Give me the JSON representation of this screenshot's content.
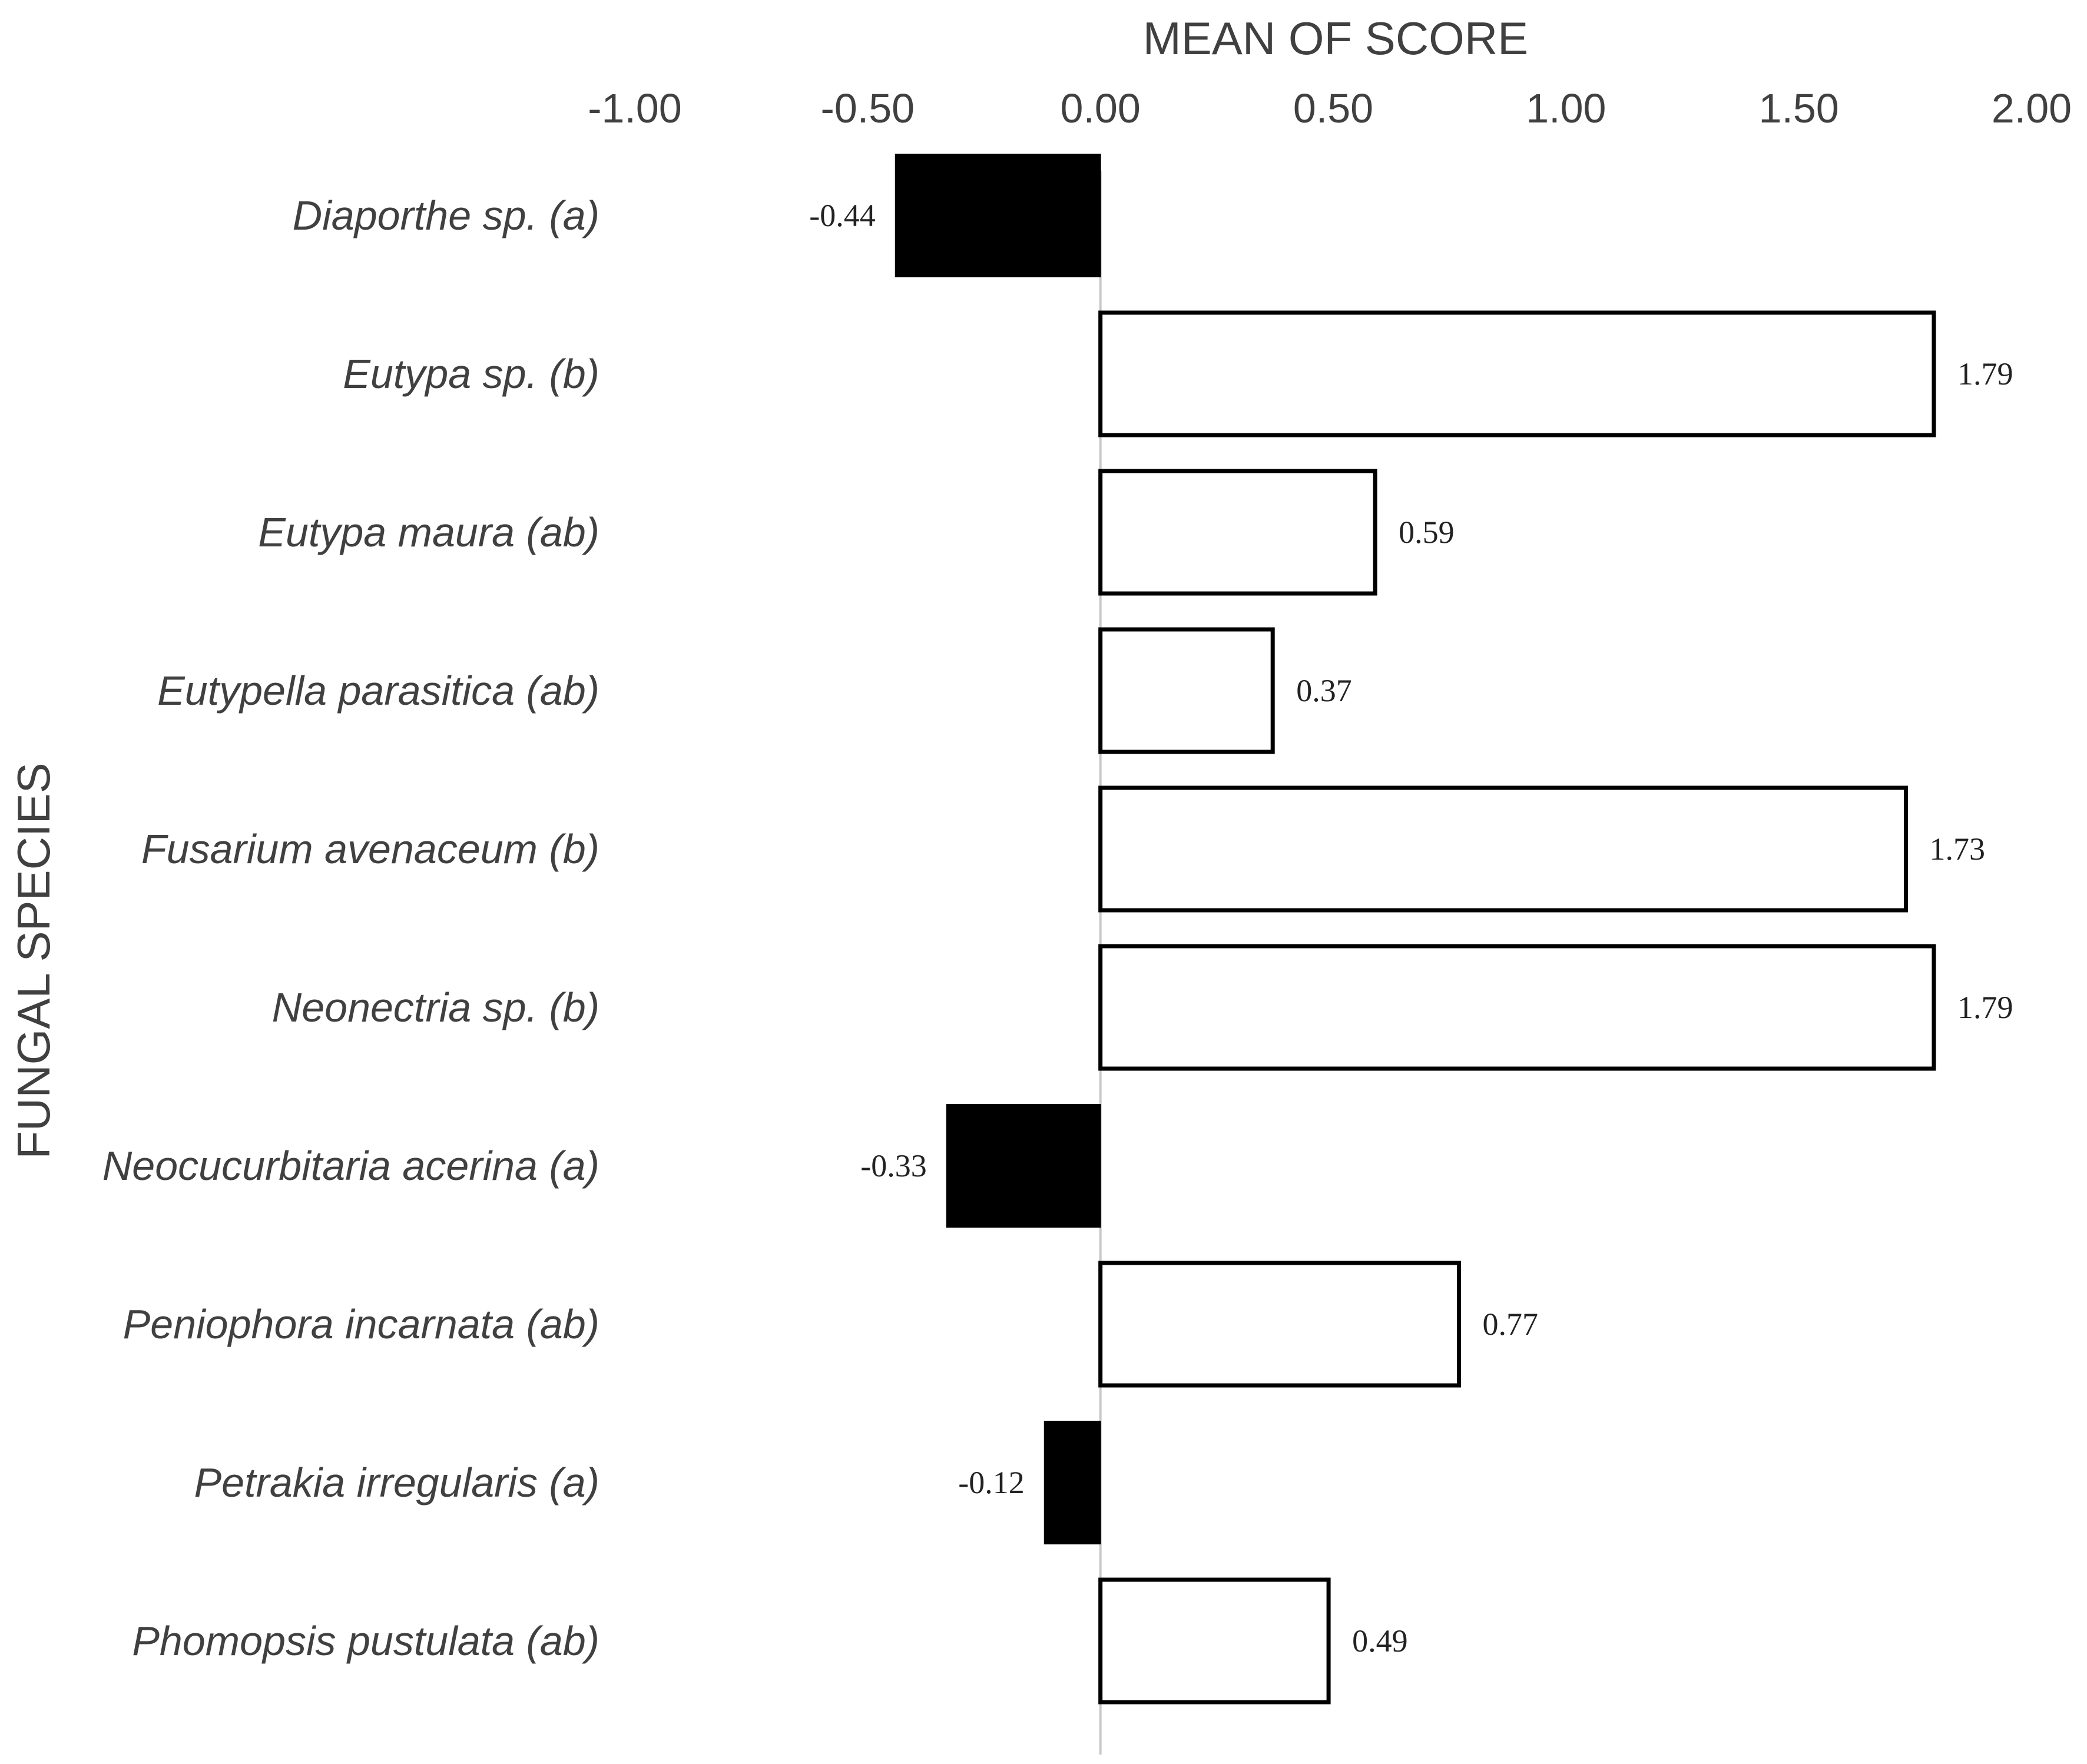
{
  "chart_data": {
    "type": "bar",
    "orientation": "horizontal",
    "title": "",
    "xlabel": "MEAN OF SCORE",
    "ylabel": "FUNGAL SPECIES",
    "xlim": [
      -1.0,
      2.0
    ],
    "x_ticks": [
      "-1.00",
      "-0.50",
      "0.00",
      "0.50",
      "1.00",
      "1.50",
      "2.00"
    ],
    "x_tick_values": [
      -1.0,
      -0.5,
      0.0,
      0.5,
      1.0,
      1.5,
      2.0
    ],
    "x_axis_position": "top",
    "grid": false,
    "legend": "none",
    "categories": [
      "Diaporthe sp. (a)",
      "Eutypa sp. (b)",
      "Eutypa maura (ab)",
      "Eutypella parasitica (ab)",
      "Fusarium avenaceum (b)",
      "Neonectria sp. (b)",
      "Neocucurbitaria acerina (a)",
      "Peniophora incarnata (ab)",
      "Petrakia irregularis (a)",
      "Phomopsis pustulata (ab)"
    ],
    "values": [
      -0.44,
      1.79,
      0.59,
      0.37,
      1.73,
      1.79,
      -0.33,
      0.77,
      -0.12,
      0.49
    ],
    "data_labels": [
      "-0.44",
      "1.79",
      "0.59",
      "0.37",
      "1.73",
      "1.79",
      "-0.33",
      "0.77",
      "-0.12",
      "0.49"
    ],
    "colors": {
      "negative_fill": "#000000",
      "positive_fill": "#ffffff",
      "bar_stroke": "#000000",
      "zero_line": "#c8c8c8",
      "text": "#404040"
    }
  }
}
